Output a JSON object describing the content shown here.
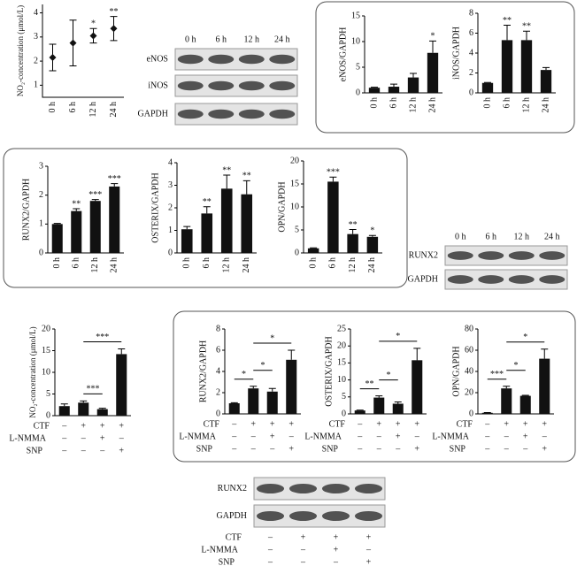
{
  "chart_data": [
    {
      "type": "scatter",
      "ylabel": "NO₂-concentration (μmol/L)",
      "categories": [
        "0 h",
        "6 h",
        "12 h",
        "24 h"
      ],
      "values": [
        2.15,
        2.75,
        3.05,
        3.35
      ],
      "errors": [
        0.55,
        0.95,
        0.3,
        0.5
      ],
      "annotations": [
        null,
        null,
        "*",
        "**"
      ],
      "ylim": [
        0.5,
        4.35
      ],
      "yticks": [
        1,
        2,
        3,
        4
      ]
    },
    {
      "type": "bar",
      "ylabel": "eNOS/GAPDH",
      "categories": [
        "0 h",
        "6 h",
        "12 h",
        "24 h"
      ],
      "values": [
        1,
        1.2,
        3,
        7.8
      ],
      "errors": [
        0.1,
        0.5,
        0.8,
        2.3
      ],
      "annotations": [
        null,
        null,
        null,
        "*"
      ],
      "ylim": [
        0,
        15
      ],
      "yticks": [
        0,
        5,
        10,
        15
      ]
    },
    {
      "type": "bar",
      "ylabel": "iNOS/GAPDH",
      "categories": [
        "0 h",
        "6 h",
        "12 h",
        "24 h"
      ],
      "values": [
        1,
        5.3,
        5.3,
        2.3
      ],
      "errors": [
        0.05,
        1.5,
        0.9,
        0.25
      ],
      "annotations": [
        null,
        "**",
        "**",
        null
      ],
      "ylim": [
        0,
        8
      ],
      "yticks": [
        0,
        2,
        4,
        6,
        8
      ]
    },
    {
      "type": "bar",
      "ylabel": "RUNX2/GAPDH",
      "categories": [
        "0 h",
        "6 h",
        "12 h",
        "24 h"
      ],
      "values": [
        1,
        1.45,
        1.8,
        2.3
      ],
      "errors": [
        0.02,
        0.08,
        0.05,
        0.1
      ],
      "annotations": [
        null,
        "**",
        "***",
        "***"
      ],
      "ylim": [
        0,
        3
      ],
      "yticks": [
        0,
        1,
        2,
        3
      ]
    },
    {
      "type": "bar",
      "ylabel": "OSTERIX/GAPDH",
      "categories": [
        "0 h",
        "6 h",
        "12 h",
        "24 h"
      ],
      "values": [
        1.05,
        1.75,
        2.85,
        2.6
      ],
      "errors": [
        0.12,
        0.3,
        0.6,
        0.6
      ],
      "annotations": [
        null,
        "**",
        "**",
        "**"
      ],
      "ylim": [
        0,
        4
      ],
      "yticks": [
        0,
        1,
        2,
        3,
        4
      ]
    },
    {
      "type": "bar",
      "ylabel": "OPN/GAPDH",
      "categories": [
        "0 h",
        "6 h",
        "12 h",
        "24 h"
      ],
      "values": [
        1,
        15.5,
        4.1,
        3.5
      ],
      "errors": [
        0.1,
        1,
        1,
        0.3
      ],
      "annotations": [
        null,
        "***",
        "**",
        "*"
      ],
      "ylim": [
        0,
        20
      ],
      "yticks": [
        0,
        5,
        10,
        15,
        20
      ]
    },
    {
      "type": "bar",
      "ylabel": "NO₂-concentration (μmol/L)",
      "values": [
        2.2,
        3,
        1.5,
        14.2
      ],
      "errors": [
        0.5,
        0.4,
        0.2,
        1.2
      ],
      "ylim": [
        0,
        20
      ],
      "yticks": [
        0,
        5,
        10,
        15,
        20
      ],
      "conditions": [
        {
          "name": "CTF",
          "signs": [
            "–",
            "+",
            "+",
            "+"
          ]
        },
        {
          "name": "L-NMMA",
          "signs": [
            "–",
            "–",
            "+",
            "–"
          ]
        },
        {
          "name": "SNP",
          "signs": [
            "–",
            "–",
            "–",
            "+"
          ]
        }
      ],
      "brackets": [
        {
          "label": "***",
          "between": [
            1,
            2
          ]
        },
        {
          "label": "***",
          "between": [
            1,
            3
          ]
        }
      ]
    },
    {
      "type": "bar",
      "ylabel": "RUNX2/GAPDH",
      "values": [
        1,
        2.4,
        2.1,
        5.1
      ],
      "errors": [
        0.05,
        0.2,
        0.3,
        0.9
      ],
      "ylim": [
        0,
        8
      ],
      "yticks": [
        0,
        2,
        4,
        6,
        8
      ],
      "conditions": [
        {
          "name": "CTF",
          "signs": [
            "–",
            "+",
            "+",
            "+"
          ]
        },
        {
          "name": "L-NMMA",
          "signs": [
            "–",
            "–",
            "+",
            "–"
          ]
        },
        {
          "name": "SNP",
          "signs": [
            "–",
            "–",
            "–",
            "+"
          ]
        }
      ],
      "brackets": [
        {
          "label": "*",
          "between": [
            0,
            1
          ]
        },
        {
          "label": "*",
          "between": [
            1,
            2
          ]
        },
        {
          "label": "*",
          "between": [
            1,
            3
          ]
        }
      ]
    },
    {
      "type": "bar",
      "ylabel": "OSTERIX/GAPDH",
      "values": [
        1,
        4.8,
        3,
        15.8
      ],
      "errors": [
        0.1,
        0.5,
        0.5,
        3.5
      ],
      "ylim": [
        0,
        25
      ],
      "yticks": [
        0,
        5,
        10,
        15,
        20,
        25
      ],
      "conditions": [
        {
          "name": "CTF",
          "signs": [
            "–",
            "+",
            "+",
            "+"
          ]
        },
        {
          "name": "L-NMMA",
          "signs": [
            "–",
            "–",
            "+",
            "–"
          ]
        },
        {
          "name": "SNP",
          "signs": [
            "–",
            "–",
            "–",
            "+"
          ]
        }
      ],
      "brackets": [
        {
          "label": "**",
          "between": [
            0,
            1
          ]
        },
        {
          "label": "*",
          "between": [
            1,
            2
          ]
        },
        {
          "label": "*",
          "between": [
            1,
            3
          ]
        }
      ]
    },
    {
      "type": "bar",
      "ylabel": "OPN/GAPDH",
      "values": [
        1,
        24,
        17,
        52
      ],
      "errors": [
        0.3,
        2,
        0.5,
        9
      ],
      "ylim": [
        0,
        80
      ],
      "yticks": [
        0,
        20,
        40,
        60,
        80
      ],
      "conditions": [
        {
          "name": "CTF",
          "signs": [
            "–",
            "+",
            "+",
            "+"
          ]
        },
        {
          "name": "L-NMMA",
          "signs": [
            "–",
            "–",
            "+",
            "–"
          ]
        },
        {
          "name": "SNP",
          "signs": [
            "–",
            "–",
            "–",
            "+"
          ]
        }
      ],
      "brackets": [
        {
          "label": "***",
          "between": [
            0,
            1
          ]
        },
        {
          "label": "*",
          "between": [
            1,
            2
          ]
        },
        {
          "label": "*",
          "between": [
            1,
            3
          ]
        }
      ]
    }
  ],
  "blots": [
    {
      "lanes": [
        "0 h",
        "6 h",
        "12 h",
        "24 h"
      ],
      "rows": [
        "eNOS",
        "iNOS",
        "GAPDH"
      ]
    },
    {
      "lanes": [
        "0 h",
        "6 h",
        "12 h",
        "24 h"
      ],
      "rows": [
        "RUNX2",
        "GAPDH"
      ]
    },
    {
      "rows": [
        "RUNX2",
        "GAPDH"
      ],
      "conditions": [
        {
          "name": "CTF",
          "signs": [
            "–",
            "+",
            "+",
            "+"
          ]
        },
        {
          "name": "L-NMMA",
          "signs": [
            "–",
            "–",
            "+",
            "–"
          ]
        },
        {
          "name": "SNP",
          "signs": [
            "–",
            "–",
            "–",
            "+"
          ]
        }
      ]
    }
  ]
}
